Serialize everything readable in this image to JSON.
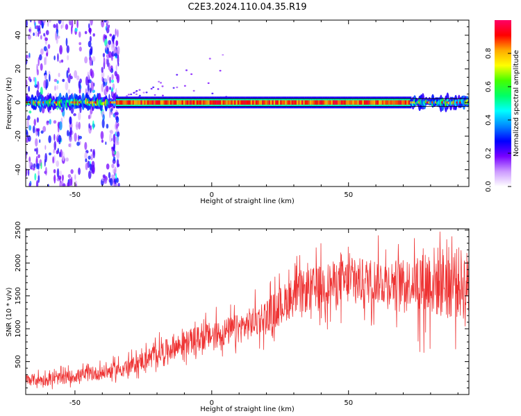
{
  "figure_title": "C2E3.2024.110.04.35.R19",
  "chart_data": [
    {
      "type": "heatmap",
      "xlabel": "Height of straight line (km)",
      "ylabel": "Frequency (Hz)",
      "xlim": [
        -68,
        94
      ],
      "ylim": [
        -50,
        49
      ],
      "x_ticks": [
        -50,
        0,
        50
      ],
      "y_ticks": [
        -40,
        -20,
        0,
        20,
        40
      ],
      "colorbar": {
        "label": "Normalized spectral amplitude",
        "range": [
          0,
          1
        ],
        "ticks": [
          0.0,
          0.2,
          0.4,
          0.6,
          0.8
        ],
        "colors": [
          "#ffffff",
          "#cc99ff",
          "#7700ff",
          "#0000ff",
          "#0088ff",
          "#00ffff",
          "#00ff66",
          "#44ff00",
          "#ffff00",
          "#ffaa00",
          "#ff0000",
          "#ff0066"
        ]
      },
      "ridge": {
        "frequency": 0,
        "strong_x_range": [
          -35,
          73
        ],
        "weak_x_ranges": [
          [
            -68,
            -35
          ],
          [
            73,
            94
          ]
        ]
      }
    },
    {
      "type": "line",
      "xlabel": "Height of straight line (km)",
      "ylabel": "SNR (10 * v/v)",
      "xlim": [
        -68,
        94
      ],
      "ylim": [
        0,
        2520
      ],
      "x_ticks": [
        -50,
        0,
        50
      ],
      "y_ticks": [
        500,
        1000,
        1500,
        2000,
        2500
      ],
      "color": "#ee3333",
      "x": [
        -68,
        -60,
        -50,
        -40,
        -30,
        -20,
        -10,
        0,
        10,
        20,
        30,
        40,
        50,
        60,
        70,
        80,
        90,
        94
      ],
      "y": [
        230,
        220,
        280,
        330,
        420,
        620,
        780,
        900,
        1000,
        1200,
        1500,
        1650,
        1720,
        1730,
        1700,
        1720,
        1700,
        1650
      ]
    }
  ]
}
